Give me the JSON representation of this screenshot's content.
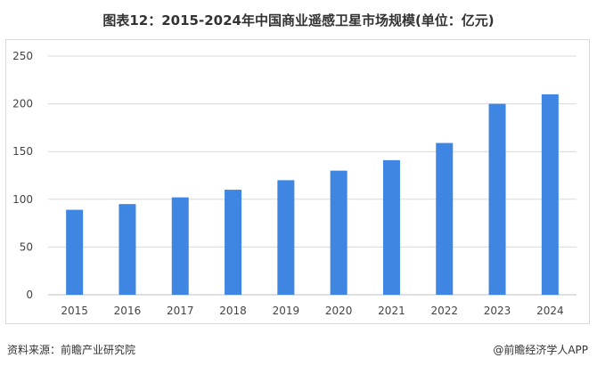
{
  "title": "图表12：2015-2024年中国商业遥感卫星市场规模(单位：亿元)",
  "source": "资料来源：前瞻产业研究院",
  "credit": "@前瞻经济学人APP",
  "colors": {
    "bar": "#3f86e2",
    "grid": "#d9d9d9",
    "axis": "#bfbfbf"
  },
  "chart_data": {
    "type": "bar",
    "title": "图表12：2015-2024年中国商业遥感卫星市场规模(单位：亿元)",
    "xlabel": "",
    "ylabel": "",
    "categories": [
      "2015",
      "2016",
      "2017",
      "2018",
      "2019",
      "2020",
      "2021",
      "2022",
      "2023",
      "2024"
    ],
    "values": [
      89,
      95,
      102,
      110,
      120,
      130,
      141,
      159,
      200,
      210
    ],
    "ylim": [
      0,
      250
    ],
    "yticks": [
      0,
      50,
      100,
      150,
      200,
      250
    ],
    "grid": true,
    "legend": "none"
  }
}
